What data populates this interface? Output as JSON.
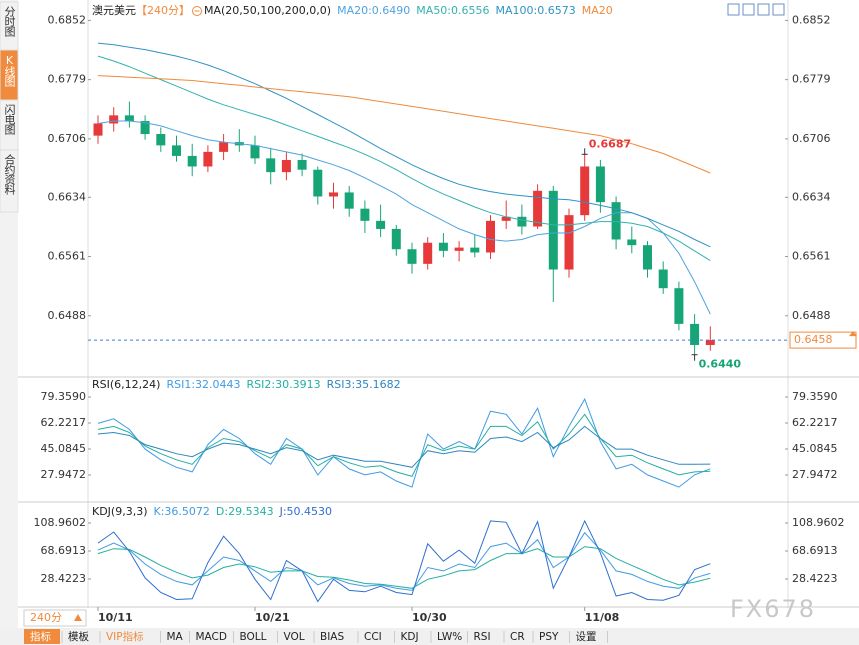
{
  "sidebar": [
    "分时图",
    "K线图",
    "闪电图",
    "合约资料"
  ],
  "period_button": "240分",
  "watermark": "FX678",
  "toolbar": [
    "指标",
    "模板",
    "VIP指标",
    "MA",
    "MACD",
    "BOLL",
    "VOL",
    "BIAS",
    "CCI",
    "KDJ",
    "LW%",
    "RSI",
    "CR",
    "PSY",
    "设置"
  ],
  "chart_data": [
    {
      "type": "candlestick",
      "title": "澳元美元",
      "subtitle": "【240分】",
      "indicator": "MA(20,50,100,200,0,0)",
      "categories": [
        "10/11",
        null,
        null,
        null,
        null,
        null,
        null,
        null,
        null,
        null,
        "10/21",
        null,
        null,
        null,
        null,
        null,
        null,
        null,
        null,
        null,
        "10/30",
        null,
        null,
        null,
        null,
        null,
        null,
        null,
        null,
        null,
        null,
        "11/08",
        null,
        null,
        null,
        null,
        null,
        null,
        null,
        null
      ],
      "open": [
        0.671,
        0.6725,
        0.6735,
        0.6728,
        0.6712,
        0.6698,
        0.6685,
        0.6672,
        0.669,
        0.6702,
        0.6698,
        0.6682,
        0.6665,
        0.668,
        0.6668,
        0.6635,
        0.664,
        0.662,
        0.6605,
        0.6595,
        0.657,
        0.6552,
        0.6578,
        0.6568,
        0.6572,
        0.6566,
        0.6605,
        0.661,
        0.6598,
        0.6642,
        0.6545,
        0.6612,
        0.6672,
        0.6628,
        0.6582,
        0.6575,
        0.6545,
        0.6522,
        0.6478,
        0.6452
      ],
      "high": [
        0.6735,
        0.6745,
        0.6752,
        0.6735,
        0.672,
        0.671,
        0.67,
        0.6698,
        0.6712,
        0.6718,
        0.671,
        0.6695,
        0.669,
        0.6688,
        0.6672,
        0.6652,
        0.6648,
        0.663,
        0.6625,
        0.66,
        0.6578,
        0.6585,
        0.659,
        0.658,
        0.6588,
        0.6612,
        0.663,
        0.6625,
        0.665,
        0.6648,
        0.662,
        0.6687,
        0.668,
        0.6635,
        0.6598,
        0.658,
        0.6555,
        0.653,
        0.649,
        0.6475
      ],
      "low": [
        0.67,
        0.6715,
        0.672,
        0.6705,
        0.669,
        0.6678,
        0.666,
        0.6665,
        0.668,
        0.669,
        0.6675,
        0.665,
        0.6655,
        0.666,
        0.6625,
        0.662,
        0.661,
        0.659,
        0.6585,
        0.6562,
        0.654,
        0.6545,
        0.656,
        0.6555,
        0.656,
        0.6558,
        0.6595,
        0.6588,
        0.6595,
        0.6505,
        0.6535,
        0.6605,
        0.6615,
        0.657,
        0.6565,
        0.6535,
        0.6515,
        0.647,
        0.644,
        0.6445
      ],
      "close": [
        0.6725,
        0.6735,
        0.6728,
        0.6712,
        0.6698,
        0.6685,
        0.6672,
        0.669,
        0.6702,
        0.6698,
        0.6682,
        0.6665,
        0.668,
        0.6668,
        0.6635,
        0.664,
        0.662,
        0.6605,
        0.6595,
        0.657,
        0.6552,
        0.6578,
        0.6568,
        0.6572,
        0.6566,
        0.6605,
        0.661,
        0.6598,
        0.6642,
        0.6545,
        0.6612,
        0.6672,
        0.6628,
        0.6582,
        0.6575,
        0.6545,
        0.6522,
        0.6478,
        0.6452,
        0.6458
      ],
      "up_color": "#e6393a",
      "down_color": "#17a577",
      "series": [
        {
          "name": "MA20:0.6490",
          "color": "#4ea3e0",
          "values": [
            0.6725,
            0.6728,
            0.6728,
            0.6726,
            0.6722,
            0.6716,
            0.671,
            0.6705,
            0.6702,
            0.67,
            0.6698,
            0.6694,
            0.669,
            0.6686,
            0.668,
            0.6674,
            0.6667,
            0.6658,
            0.6648,
            0.6638,
            0.6625,
            0.6615,
            0.6605,
            0.6595,
            0.6588,
            0.6582,
            0.658,
            0.6582,
            0.6588,
            0.659,
            0.659,
            0.6598,
            0.6608,
            0.6615,
            0.6615,
            0.6608,
            0.659,
            0.6565,
            0.653,
            0.649
          ]
        },
        {
          "name": "MA50:0.6556",
          "color": "#33b2ae",
          "values": [
            0.6808,
            0.6802,
            0.6795,
            0.6787,
            0.6779,
            0.6771,
            0.6763,
            0.6755,
            0.6748,
            0.6742,
            0.6736,
            0.673,
            0.6723,
            0.6716,
            0.6709,
            0.6702,
            0.6695,
            0.6687,
            0.6678,
            0.6668,
            0.6657,
            0.6647,
            0.6638,
            0.663,
            0.6622,
            0.6615,
            0.661,
            0.6606,
            0.6603,
            0.66,
            0.66,
            0.6602,
            0.6604,
            0.6604,
            0.6602,
            0.6598,
            0.659,
            0.658,
            0.6568,
            0.6556
          ]
        },
        {
          "name": "MA100:0.6573",
          "color": "#2f93c4",
          "values": [
            0.6824,
            0.6822,
            0.6819,
            0.6816,
            0.6812,
            0.6808,
            0.6803,
            0.6797,
            0.679,
            0.6782,
            0.6774,
            0.6765,
            0.6756,
            0.6746,
            0.6736,
            0.6726,
            0.6716,
            0.6705,
            0.6694,
            0.6684,
            0.6674,
            0.6665,
            0.6657,
            0.665,
            0.6645,
            0.6641,
            0.6638,
            0.6636,
            0.6634,
            0.6632,
            0.6631,
            0.6628,
            0.6624,
            0.662,
            0.6615,
            0.6608,
            0.66,
            0.6592,
            0.6582,
            0.6573
          ]
        },
        {
          "name": "MA20",
          "color": "#f08a3c",
          "values": [
            0.6784,
            0.6783,
            0.6782,
            0.6781,
            0.678,
            0.6779,
            0.6778,
            0.6776,
            0.6774,
            0.6772,
            0.677,
            0.6768,
            0.6766,
            0.6764,
            0.6762,
            0.676,
            0.6758,
            0.6755,
            0.6752,
            0.6749,
            0.6746,
            0.6743,
            0.674,
            0.6737,
            0.6734,
            0.6731,
            0.6728,
            0.6725,
            0.6722,
            0.6719,
            0.6716,
            0.6713,
            0.671,
            0.6705,
            0.67,
            0.6694,
            0.6688,
            0.668,
            0.6672,
            0.6664
          ]
        }
      ],
      "last_price": 0.6458,
      "annotations": [
        0.6687,
        {
          "value": 0.644,
          "label": "0.6440"
        }
      ],
      "ylim": [
        0.6415,
        0.6871
      ],
      "yticks": [
        0.6852,
        0.6779,
        0.6706,
        0.6634,
        0.6561,
        0.6488
      ]
    },
    {
      "type": "line",
      "title": "RSI(6,12,24)",
      "series": [
        {
          "name": "RSI1:32.0443",
          "color": "#3f9be6",
          "values": [
            62,
            65,
            58,
            45,
            38,
            33,
            30,
            48,
            58,
            52,
            42,
            35,
            52,
            45,
            28,
            40,
            32,
            28,
            30,
            24,
            20,
            55,
            45,
            50,
            45,
            70,
            68,
            55,
            72,
            40,
            60,
            78,
            50,
            32,
            35,
            28,
            24,
            20,
            28,
            32.0443
          ]
        },
        {
          "name": "RSI2:30.3913",
          "color": "#22b0a0",
          "values": [
            58,
            60,
            56,
            47,
            42,
            38,
            35,
            46,
            52,
            50,
            44,
            39,
            48,
            45,
            34,
            40,
            36,
            33,
            34,
            30,
            27,
            48,
            44,
            47,
            45,
            60,
            60,
            54,
            63,
            45,
            55,
            68,
            52,
            40,
            41,
            36,
            32,
            28,
            30,
            30.3913
          ]
        },
        {
          "name": "RSI3:35.1682",
          "color": "#2e86c1",
          "values": [
            55,
            56,
            54,
            48,
            45,
            42,
            40,
            45,
            49,
            48,
            45,
            42,
            46,
            44,
            38,
            41,
            39,
            37,
            37,
            35,
            33,
            44,
            42,
            44,
            43,
            52,
            53,
            50,
            56,
            46,
            51,
            60,
            52,
            45,
            45,
            41,
            38,
            35,
            35,
            35.1682
          ]
        }
      ],
      "ylim": [
        11.47,
        82.67
      ],
      "yticks": [
        {
          "value": 79.359,
          "label": "79.3590"
        },
        62.2217,
        45.0845,
        27.9472
      ]
    },
    {
      "type": "line",
      "title": "KDJ(9,3,3)",
      "series": [
        {
          "name": "K:36.5072",
          "color": "#3f9be6",
          "values": [
            70,
            80,
            70,
            50,
            35,
            25,
            20,
            40,
            60,
            55,
            40,
            25,
            45,
            40,
            20,
            30,
            22,
            18,
            20,
            15,
            12,
            45,
            40,
            50,
            45,
            75,
            80,
            65,
            85,
            45,
            60,
            95,
            70,
            40,
            35,
            25,
            18,
            15,
            30,
            36.5072
          ]
        },
        {
          "name": "D:29.5343",
          "color": "#22b0a0",
          "values": [
            65,
            72,
            71,
            60,
            48,
            38,
            30,
            34,
            45,
            50,
            46,
            38,
            40,
            40,
            32,
            31,
            27,
            22,
            21,
            18,
            15,
            28,
            33,
            40,
            42,
            55,
            65,
            65,
            72,
            60,
            60,
            75,
            72,
            58,
            48,
            38,
            28,
            20,
            24,
            29.5343
          ]
        },
        {
          "name": "J:50.4530",
          "color": "#2e6fcf",
          "values": [
            80,
            96,
            68,
            30,
            9,
            -1,
            0,
            52,
            90,
            65,
            28,
            -1,
            55,
            40,
            -4,
            28,
            12,
            10,
            18,
            9,
            6,
            79,
            54,
            70,
            51,
            112,
            110,
            65,
            111,
            15,
            60,
            112,
            66,
            4,
            9,
            -1,
            -2,
            5,
            42,
            50.453
          ]
        }
      ],
      "ylim": [
        -8.97,
        116.15
      ],
      "yticks": [
        108.9602,
        68.6913,
        28.4223
      ]
    }
  ]
}
